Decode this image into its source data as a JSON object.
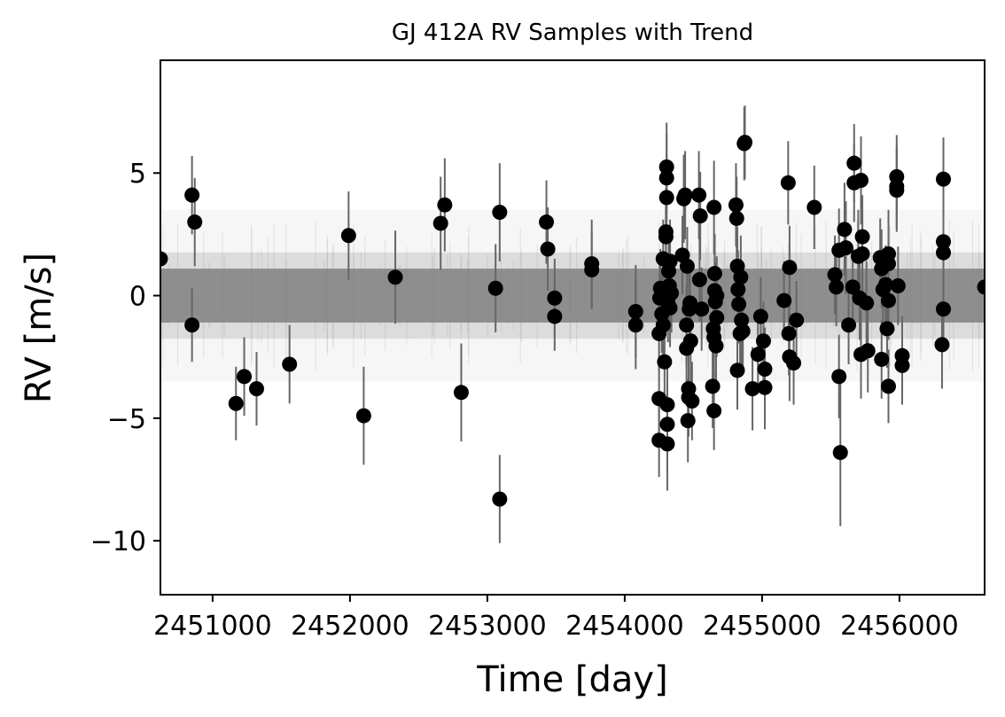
{
  "chart_data": {
    "type": "scatter",
    "title": "GJ 412A RV Samples with Trend",
    "xlabel": "Time [day]",
    "ylabel": "RV [m/s]",
    "xlim": [
      2450620,
      2456620
    ],
    "ylim": [
      -12.2,
      9.6
    ],
    "xticks": [
      2451000,
      2452000,
      2453000,
      2454000,
      2455000,
      2456000
    ],
    "yticks": [
      -10,
      -5,
      0,
      5
    ],
    "ytick_labels": [
      "−10",
      "−5",
      "0",
      "5"
    ],
    "grid": false,
    "legend": "none",
    "colors": {
      "points": "#000000",
      "errorbars": "#666666",
      "samples": "#808080"
    },
    "trend_band": {
      "center": 0.0,
      "dense_half_width": 1.1,
      "faint_half_width": 3.5
    },
    "series": [
      {
        "points": [
          [
            2450620,
            1.5,
            1.5
          ],
          [
            2450850,
            4.1,
            1.6
          ],
          [
            2450850,
            -1.2,
            1.5
          ],
          [
            2450870,
            3.0,
            1.8
          ],
          [
            2451170,
            -4.4,
            1.5
          ],
          [
            2451230,
            -3.3,
            1.6
          ],
          [
            2451320,
            -3.8,
            1.5
          ],
          [
            2451560,
            -2.8,
            1.6
          ],
          [
            2451990,
            2.45,
            1.8
          ],
          [
            2452100,
            -4.9,
            2.0
          ],
          [
            2452330,
            0.75,
            1.9
          ],
          [
            2452660,
            2.95,
            1.9
          ],
          [
            2452690,
            3.7,
            1.9
          ],
          [
            2452810,
            -3.95,
            2.0
          ],
          [
            2453060,
            0.3,
            1.8
          ],
          [
            2453090,
            -8.3,
            1.8
          ],
          [
            2453090,
            3.4,
            2.0
          ],
          [
            2453430,
            3.0,
            1.7
          ],
          [
            2453440,
            1.9,
            1.7
          ],
          [
            2453490,
            -0.1,
            1.6
          ],
          [
            2453490,
            -0.85,
            1.4
          ],
          [
            2453760,
            1.3,
            1.8
          ],
          [
            2453760,
            1.05,
            1.6
          ],
          [
            2454080,
            -0.65,
            1.9
          ],
          [
            2454080,
            -1.2,
            1.8
          ],
          [
            2454250,
            -4.2,
            1.5
          ],
          [
            2454250,
            -5.9,
            1.5
          ],
          [
            2454250,
            -1.55,
            1.5
          ],
          [
            2454255,
            -0.1,
            1.6
          ],
          [
            2454260,
            0.3,
            1.6
          ],
          [
            2454270,
            -0.75,
            1.6
          ],
          [
            2454280,
            1.5,
            1.6
          ],
          [
            2454280,
            -1.2,
            1.6
          ],
          [
            2454290,
            -2.7,
            1.6
          ],
          [
            2454295,
            0.05,
            1.6
          ],
          [
            2454300,
            2.4,
            1.8
          ],
          [
            2454300,
            2.6,
            1.8
          ],
          [
            2454305,
            4.0,
            1.8
          ],
          [
            2454305,
            4.8,
            1.8
          ],
          [
            2454305,
            5.25,
            1.8
          ],
          [
            2454310,
            -6.05,
            1.9
          ],
          [
            2454310,
            -4.45,
            1.9
          ],
          [
            2454310,
            -5.25,
            1.8
          ],
          [
            2454315,
            -0.3,
            1.6
          ],
          [
            2454320,
            1.0,
            1.6
          ],
          [
            2454325,
            0.4,
            1.6
          ],
          [
            2454330,
            1.4,
            1.7
          ],
          [
            2454330,
            -0.5,
            1.6
          ],
          [
            2454340,
            0.1,
            1.6
          ],
          [
            2454420,
            1.65,
            1.6
          ],
          [
            2454430,
            3.95,
            1.8
          ],
          [
            2454440,
            4.1,
            1.8
          ],
          [
            2454450,
            -2.15,
            1.8
          ],
          [
            2454450,
            -1.2,
            1.6
          ],
          [
            2454455,
            1.2,
            1.6
          ],
          [
            2454460,
            -5.1,
            1.7
          ],
          [
            2454465,
            -3.8,
            1.7
          ],
          [
            2454465,
            -4.15,
            1.6
          ],
          [
            2454470,
            -0.55,
            1.7
          ],
          [
            2454475,
            -0.3,
            1.7
          ],
          [
            2454480,
            -1.85,
            1.8
          ],
          [
            2454490,
            -4.3,
            1.6
          ],
          [
            2454540,
            4.1,
            1.8
          ],
          [
            2454545,
            0.65,
            1.7
          ],
          [
            2454550,
            3.25,
            1.8
          ],
          [
            2454560,
            -0.55,
            1.7
          ],
          [
            2454640,
            -3.7,
            1.7
          ],
          [
            2454645,
            -1.35,
            1.8
          ],
          [
            2454650,
            3.6,
            1.9
          ],
          [
            2454650,
            -4.7,
            1.6
          ],
          [
            2454650,
            -1.7,
            1.6
          ],
          [
            2454655,
            0.9,
            1.6
          ],
          [
            2454655,
            0.2,
            1.6
          ],
          [
            2454660,
            -0.25,
            1.6
          ],
          [
            2454665,
            -2.05,
            1.7
          ],
          [
            2454670,
            0.0,
            1.6
          ],
          [
            2454670,
            -0.9,
            1.6
          ],
          [
            2454810,
            3.7,
            1.7
          ],
          [
            2454815,
            3.15,
            1.7
          ],
          [
            2454820,
            1.2,
            1.6
          ],
          [
            2454820,
            -3.05,
            1.6
          ],
          [
            2454825,
            0.25,
            1.6
          ],
          [
            2454830,
            -0.35,
            1.6
          ],
          [
            2454840,
            -1.55,
            1.7
          ],
          [
            2454845,
            0.75,
            1.7
          ],
          [
            2454850,
            -1.0,
            1.8
          ],
          [
            2454860,
            -1.45,
            1.6
          ],
          [
            2454870,
            6.2,
            1.5
          ],
          [
            2454875,
            6.25,
            1.5
          ],
          [
            2454930,
            -3.8,
            1.7
          ],
          [
            2454970,
            -2.4,
            1.6
          ],
          [
            2454990,
            -0.85,
            1.6
          ],
          [
            2455010,
            -1.85,
            1.6
          ],
          [
            2455020,
            -3.0,
            1.7
          ],
          [
            2455020,
            -3.75,
            1.7
          ],
          [
            2455160,
            -0.2,
            1.6
          ],
          [
            2455190,
            4.6,
            1.7
          ],
          [
            2455195,
            -1.55,
            1.7
          ],
          [
            2455200,
            1.15,
            1.7
          ],
          [
            2455200,
            -2.5,
            1.8
          ],
          [
            2455230,
            -2.75,
            1.7
          ],
          [
            2455250,
            -1.0,
            1.6
          ],
          [
            2455380,
            3.6,
            1.7
          ],
          [
            2455530,
            0.85,
            1.6
          ],
          [
            2455540,
            0.35,
            1.6
          ],
          [
            2455560,
            1.85,
            1.7
          ],
          [
            2455560,
            -3.3,
            1.7
          ],
          [
            2455570,
            -6.4,
            3.0
          ],
          [
            2455600,
            2.7,
            1.9
          ],
          [
            2455610,
            1.95,
            1.9
          ],
          [
            2455630,
            -1.2,
            1.6
          ],
          [
            2455660,
            0.35,
            1.6
          ],
          [
            2455670,
            5.4,
            1.6
          ],
          [
            2455670,
            4.6,
            1.6
          ],
          [
            2455700,
            1.6,
            1.9
          ],
          [
            2455710,
            -0.1,
            1.7
          ],
          [
            2455720,
            4.7,
            1.8
          ],
          [
            2455720,
            -2.4,
            1.8
          ],
          [
            2455730,
            2.4,
            1.7
          ],
          [
            2455730,
            1.7,
            1.6
          ],
          [
            2455760,
            -0.3,
            1.7
          ],
          [
            2455770,
            -2.25,
            1.7
          ],
          [
            2455860,
            1.55,
            1.6
          ],
          [
            2455870,
            1.1,
            1.6
          ],
          [
            2455870,
            -2.6,
            1.6
          ],
          [
            2455880,
            0.25,
            1.5
          ],
          [
            2455900,
            0.45,
            1.6
          ],
          [
            2455910,
            -1.35,
            1.6
          ],
          [
            2455920,
            1.7,
            1.8
          ],
          [
            2455920,
            1.3,
            1.8
          ],
          [
            2455920,
            -0.2,
            1.6
          ],
          [
            2455920,
            -3.7,
            1.5
          ],
          [
            2455980,
            4.85,
            1.7
          ],
          [
            2455980,
            4.45,
            1.7
          ],
          [
            2455980,
            4.3,
            1.7
          ],
          [
            2455990,
            0.4,
            1.6
          ],
          [
            2456020,
            -2.45,
            1.6
          ],
          [
            2456020,
            -2.85,
            1.6
          ],
          [
            2456320,
            4.75,
            1.7
          ],
          [
            2456320,
            2.2,
            1.7
          ],
          [
            2456320,
            1.75,
            1.7
          ],
          [
            2456320,
            -0.55,
            1.6
          ],
          [
            2456310,
            -2.0,
            1.8
          ],
          [
            2456620,
            0.35,
            1.6
          ]
        ]
      }
    ]
  }
}
